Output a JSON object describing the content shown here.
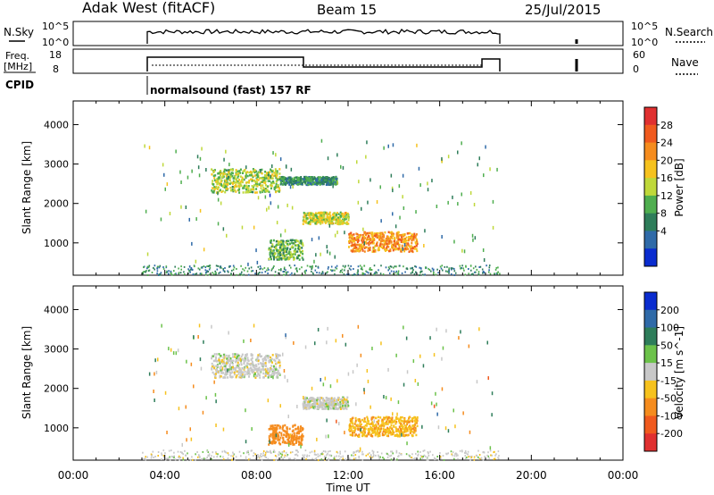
{
  "header": {
    "station": "Adak West (fitACF)",
    "beam": "Beam 15",
    "date": "25/Jul/2015"
  },
  "noise_panel": {
    "left_label": "N.Sky",
    "right_label": "N.Search",
    "left_ticks": [
      "10^5",
      "10^0"
    ],
    "right_ticks": [
      "10^5",
      "10^0"
    ]
  },
  "freq_panel": {
    "left_label_line1": "Freq.",
    "left_label_line2": "[MHz]",
    "right_label": "Nave",
    "left_ticks": [
      18,
      8
    ],
    "right_ticks": [
      60,
      0
    ]
  },
  "cpid": {
    "label": "CPID",
    "program": "normalsound (fast) 157 RF"
  },
  "x_axis": {
    "label": "Time UT",
    "tick_labels": [
      "00:00",
      "04:00",
      "08:00",
      "12:00",
      "16:00",
      "20:00",
      "00:00"
    ]
  },
  "chart_data": [
    {
      "type": "heatmap",
      "name": "power",
      "ylabel": "Slant Range [km]",
      "ylim": [
        180,
        4600
      ],
      "y_ticks": [
        1000,
        2000,
        3000,
        4000
      ],
      "xlim_hours": [
        0,
        24
      ],
      "colorbar": {
        "label": "Power [dB]",
        "tick_labels": [
          "28",
          "24",
          "20",
          "16",
          "12",
          "8",
          "4"
        ],
        "colors": [
          "#e03030",
          "#f05a1e",
          "#f58c1e",
          "#f6c21e",
          "#bfd83a",
          "#4fae4f",
          "#2e7d5a",
          "#2f6aa8",
          "#0a2ccf"
        ]
      },
      "echo_regions": [
        {
          "t_start": 6.0,
          "t_end": 9.0,
          "r_start": 2300,
          "r_end": 2900,
          "power_db": 14
        },
        {
          "t_start": 9.0,
          "t_end": 11.5,
          "r_start": 2500,
          "r_end": 2700,
          "power_db": 8
        },
        {
          "t_start": 10.0,
          "t_end": 12.0,
          "r_start": 1500,
          "r_end": 1800,
          "power_db": 16
        },
        {
          "t_start": 12.0,
          "t_end": 15.0,
          "r_start": 800,
          "r_end": 1300,
          "power_db": 22
        },
        {
          "t_start": 8.5,
          "t_end": 10.0,
          "r_start": 600,
          "r_end": 1100,
          "power_db": 12
        }
      ]
    },
    {
      "type": "heatmap",
      "name": "velocity",
      "ylabel": "Slant Range [km]",
      "ylim": [
        180,
        4600
      ],
      "y_ticks": [
        1000,
        2000,
        3000,
        4000
      ],
      "xlim_hours": [
        0,
        24
      ],
      "colorbar": {
        "label": "Velocity [m s^-1]",
        "tick_labels": [
          "200",
          "100",
          "50",
          "15",
          "-15",
          "-50",
          "-100",
          "-200"
        ],
        "colors": [
          "#0a2ccf",
          "#2f6aa8",
          "#2e7d5a",
          "#6cc24a",
          "#c8c8c8",
          "#f6c21e",
          "#f58c1e",
          "#f05a1e",
          "#e03030"
        ]
      },
      "echo_regions": [
        {
          "t_start": 6.0,
          "t_end": 9.0,
          "r_start": 2300,
          "r_end": 2900,
          "velocity": 0
        },
        {
          "t_start": 10.0,
          "t_end": 12.0,
          "r_start": 1500,
          "r_end": 1800,
          "velocity": 0
        },
        {
          "t_start": 12.0,
          "t_end": 15.0,
          "r_start": 800,
          "r_end": 1300,
          "velocity": -40
        },
        {
          "t_start": 8.5,
          "t_end": 10.0,
          "r_start": 600,
          "r_end": 1100,
          "velocity": -80
        }
      ]
    }
  ]
}
